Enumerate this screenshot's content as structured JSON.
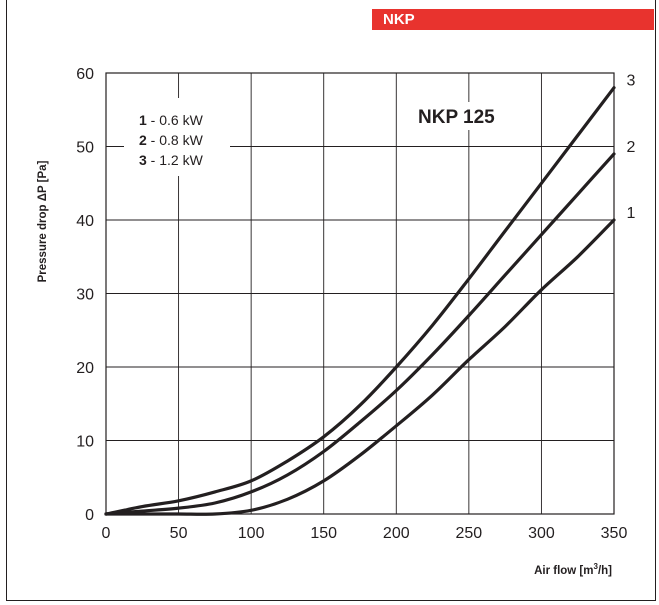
{
  "header": {
    "badge_label": "NKP",
    "badge_color": "#e8332e"
  },
  "chart_data": {
    "type": "line",
    "title": "NKP 125",
    "xlabel": "Air flow [m",
    "xlabel_sup": "3",
    "xlabel_tail": "/h]",
    "ylabel": "Pressure drop ΔP [Pa]",
    "xlim": [
      0,
      350
    ],
    "ylim": [
      0,
      60
    ],
    "xticks": [
      0,
      50,
      100,
      150,
      200,
      250,
      300,
      350
    ],
    "yticks": [
      0,
      10,
      20,
      30,
      40,
      50,
      60
    ],
    "grid": true,
    "legend_position": "top-left",
    "legend": [
      {
        "num": "1",
        "text": " - 0.6 kW"
      },
      {
        "num": "2",
        "text": " - 0.8 kW"
      },
      {
        "num": "3",
        "text": " - 1.2 kW"
      }
    ],
    "series": [
      {
        "name": "1",
        "x": [
          0,
          25,
          50,
          75,
          100,
          125,
          150,
          175,
          200,
          225,
          250,
          275,
          300,
          325,
          350
        ],
        "y": [
          0,
          0,
          0,
          0,
          0.5,
          2,
          4.5,
          8,
          12,
          16.2,
          21,
          25.5,
          30.5,
          35,
          40
        ]
      },
      {
        "name": "2",
        "x": [
          0,
          25,
          50,
          75,
          100,
          125,
          150,
          175,
          200,
          225,
          250,
          275,
          300,
          325,
          350
        ],
        "y": [
          0,
          0.4,
          0.8,
          1.5,
          3,
          5.3,
          8.5,
          12.5,
          16.8,
          21.7,
          27,
          32.5,
          38,
          43.5,
          49
        ]
      },
      {
        "name": "3",
        "x": [
          0,
          25,
          50,
          75,
          100,
          125,
          150,
          175,
          200,
          225,
          250,
          275,
          300,
          325,
          350
        ],
        "y": [
          0,
          1,
          1.8,
          3,
          4.5,
          7.2,
          10.5,
          14.8,
          20,
          25.7,
          32,
          38.5,
          45,
          51.5,
          58
        ]
      }
    ]
  }
}
